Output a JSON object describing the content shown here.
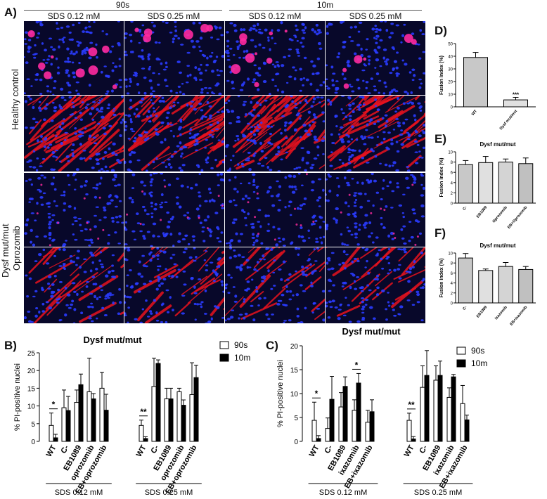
{
  "panel_a": {
    "label": "A)",
    "top_headers": [
      "90s",
      "10m"
    ],
    "col_headers": [
      "SDS 0.12 mM",
      "SDS 0.25 mM",
      "SDS 0.12 mM",
      "SDS 0.25 mM"
    ],
    "row_labels": [
      "Healthy control",
      "Dysf mut/mut",
      "Oprozomib"
    ],
    "colors": {
      "nuclei": "#2a3cff",
      "pi": "#ff2aa0",
      "actin": "#e8121e",
      "background": "#08082a"
    }
  },
  "chart_data": [
    {
      "id": "B",
      "label": "B)",
      "type": "bar",
      "title": "Dysf mut/mut",
      "ylabel": "% PI-positive nuclei",
      "ylim": [
        0,
        25
      ],
      "yticks": [
        0,
        5,
        10,
        15,
        20,
        25
      ],
      "categories": [
        "WT",
        "C-",
        "EB1089",
        "oprozomib",
        "EB+oprozomib",
        "WT",
        "C-",
        "EB1089",
        "oprozomib",
        "EB+oprozomib"
      ],
      "groups": [
        "SDS 0.12 mM",
        "SDS 0.25 mM"
      ],
      "series": [
        {
          "name": "90s",
          "values": [
            4.5,
            9.5,
            11,
            14,
            15,
            4.5,
            15.5,
            12,
            14,
            13.2
          ],
          "errors": [
            3.5,
            5,
            3.5,
            9.5,
            4.5,
            1.5,
            8,
            3,
            1,
            9
          ]
        },
        {
          "name": "10m",
          "values": [
            1,
            8.7,
            16,
            12,
            8.8,
            0.8,
            22,
            12,
            10.2,
            18
          ],
          "errors": [
            1,
            4,
            3,
            1.5,
            4.5,
            0.5,
            1,
            3,
            1.5,
            3.5
          ]
        }
      ],
      "significance": [
        {
          "category": 0,
          "label": "*"
        },
        {
          "category": 5,
          "label": "**"
        }
      ]
    },
    {
      "id": "C",
      "label": "C)",
      "type": "bar",
      "title": "Dysf mut/mut",
      "ylabel": "% PI-positive nuclei",
      "ylim": [
        0,
        20
      ],
      "yticks": [
        0,
        5,
        10,
        15,
        20
      ],
      "categories": [
        "WT",
        "C-",
        "EB1089",
        "ixazomib",
        "EB+ixazomib",
        "WT",
        "C-",
        "EB1089",
        "ixazomib",
        "EB+ixazomib"
      ],
      "groups": [
        "SDS 0.12 mM",
        "SDS 0.25 mM"
      ],
      "series": [
        {
          "name": "90s",
          "values": [
            4.4,
            2.7,
            7.2,
            6.5,
            4,
            4.4,
            11.3,
            12.8,
            9.2,
            7.9
          ],
          "errors": [
            3.8,
            2.2,
            3,
            2.2,
            2.5,
            1.5,
            4.5,
            3,
            2,
            3.8
          ]
        },
        {
          "name": "10m",
          "values": [
            0.6,
            8.8,
            11.5,
            12.2,
            6.2,
            0.5,
            13.8,
            13.8,
            13.5,
            4.5
          ],
          "errors": [
            0.6,
            4.8,
            2,
            2,
            2.5,
            0.5,
            5.2,
            3,
            0.5,
            1
          ]
        }
      ],
      "significance": [
        {
          "category": 0,
          "label": "*"
        },
        {
          "category": 3,
          "label": "*"
        },
        {
          "category": 5,
          "label": "**"
        }
      ]
    },
    {
      "id": "D",
      "label": "D)",
      "type": "bar",
      "title": "",
      "ylabel": "Fusion Index (%)",
      "ylim": [
        0,
        50
      ],
      "yticks": [
        0,
        10,
        20,
        30,
        40,
        50
      ],
      "categories": [
        "WT",
        "Dysf mut/mut"
      ],
      "values": [
        39,
        5.5
      ],
      "errors": [
        4,
        2
      ],
      "significance": [
        {
          "category": 1,
          "label": "***"
        }
      ]
    },
    {
      "id": "E",
      "label": "E)",
      "type": "bar",
      "title": "Dysf mut/mut",
      "ylabel": "Fusion Index (%)",
      "ylim": [
        0,
        10
      ],
      "yticks": [
        0,
        2,
        4,
        6,
        8,
        10
      ],
      "categories": [
        "C-",
        "EB1089",
        "Oprozomib",
        "EB+Oprozomib"
      ],
      "values": [
        7.5,
        7.9,
        8,
        7.7
      ],
      "errors": [
        0.8,
        1.2,
        0.6,
        1.1
      ]
    },
    {
      "id": "F",
      "label": "F)",
      "type": "bar",
      "title": "Dysf mut/mut",
      "ylabel": "Fusion Index (%)",
      "ylim": [
        0,
        10
      ],
      "yticks": [
        0,
        2,
        4,
        6,
        8,
        10
      ],
      "categories": [
        "C-",
        "EB1089",
        "Ixazomib",
        "EB+Ixazomib"
      ],
      "values": [
        9,
        6.5,
        7.3,
        6.7
      ],
      "errors": [
        0.9,
        0.3,
        0.8,
        0.6
      ]
    }
  ]
}
